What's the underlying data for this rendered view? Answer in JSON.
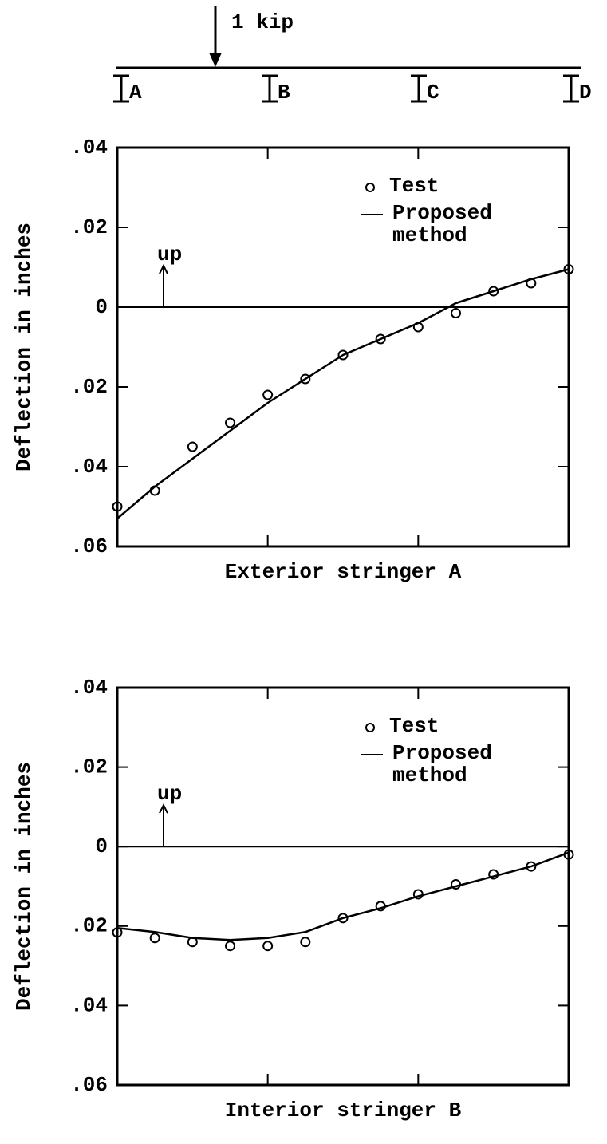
{
  "diagram": {
    "load": "1 kip",
    "stringers": [
      "A",
      "B",
      "C",
      "D"
    ]
  },
  "chart_data": [
    {
      "type": "scatter",
      "xlabel": "Exterior stringer A",
      "ylabel": "Deflection in inches",
      "annotation": "up",
      "x": [
        0,
        1,
        2,
        3,
        4,
        5,
        6,
        7,
        8,
        9,
        10,
        11,
        12
      ],
      "xlim": [
        0,
        12
      ],
      "xticks": [
        4,
        8
      ],
      "ylim": [
        -0.06,
        0.04
      ],
      "yticks": [
        {
          "value": 0.04,
          "label": ".04"
        },
        {
          "value": 0.02,
          "label": ".02"
        },
        0,
        {
          "value": -0.02,
          "label": ".02"
        },
        {
          "value": -0.04,
          "label": ".04"
        },
        {
          "value": -0.06,
          "label": ".06"
        }
      ],
      "zero_line": true,
      "series": [
        {
          "name": "Test",
          "style": "markers",
          "color": "#000000",
          "values": [
            -0.05,
            -0.046,
            -0.035,
            -0.029,
            -0.022,
            -0.018,
            -0.012,
            -0.008,
            -0.005,
            -0.0015,
            0.004,
            0.006,
            0.0095
          ]
        },
        {
          "name": "Proposed method",
          "style": "line",
          "color": "#000000",
          "values": [
            -0.053,
            -0.045,
            -0.038,
            -0.031,
            -0.024,
            -0.018,
            -0.012,
            -0.008,
            -0.004,
            0.001,
            0.004,
            0.007,
            0.0095
          ]
        }
      ]
    },
    {
      "type": "scatter",
      "xlabel": "Interior stringer B",
      "ylabel": "Deflection in inches",
      "annotation": "up",
      "x": [
        0,
        1,
        2,
        3,
        4,
        5,
        6,
        7,
        8,
        9,
        10,
        11,
        12
      ],
      "xlim": [
        0,
        12
      ],
      "xticks": [
        4,
        8
      ],
      "ylim": [
        -0.06,
        0.04
      ],
      "yticks": [
        {
          "value": 0.04,
          "label": ".04"
        },
        {
          "value": 0.02,
          "label": ".02"
        },
        0,
        {
          "value": -0.02,
          "label": ".02"
        },
        {
          "value": -0.04,
          "label": ".04"
        },
        {
          "value": -0.06,
          "label": ".06"
        }
      ],
      "zero_line": true,
      "series": [
        {
          "name": "Test",
          "style": "markers",
          "color": "#000000",
          "values": [
            -0.0216,
            -0.023,
            -0.024,
            -0.025,
            -0.025,
            -0.024,
            -0.018,
            -0.015,
            -0.012,
            -0.0095,
            -0.007,
            -0.005,
            -0.002
          ]
        },
        {
          "name": "Proposed method",
          "style": "line",
          "color": "#000000",
          "values": [
            -0.0205,
            -0.0215,
            -0.023,
            -0.0235,
            -0.023,
            -0.0215,
            -0.018,
            -0.0155,
            -0.0125,
            -0.01,
            -0.0075,
            -0.005,
            -0.0015
          ]
        }
      ]
    }
  ]
}
